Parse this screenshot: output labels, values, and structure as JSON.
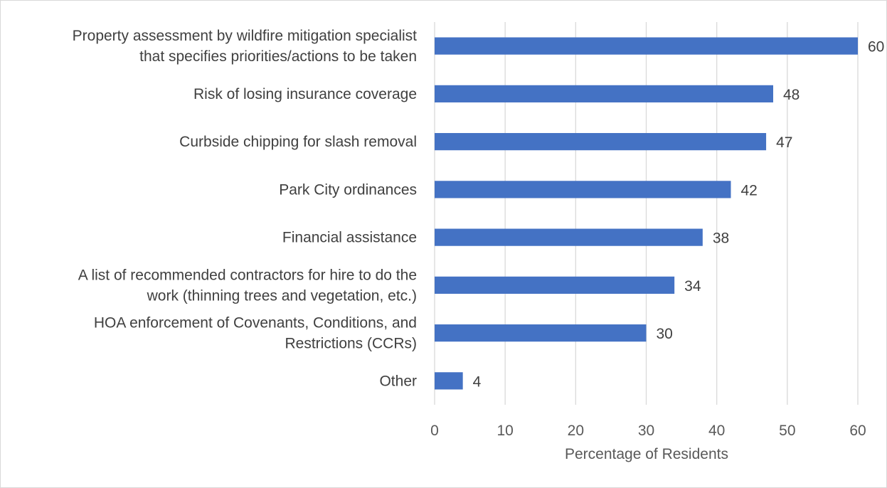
{
  "chart_data": {
    "type": "bar",
    "orientation": "horizontal",
    "categories": [
      [
        "Property assessment by wildfire mitigation specialist",
        "that specifies priorities/actions to be taken"
      ],
      [
        "Risk of losing insurance coverage"
      ],
      [
        "Curbside chipping for slash removal"
      ],
      [
        "Park City ordinances"
      ],
      [
        "Financial assistance"
      ],
      [
        "A list of recommended contractors for hire to do the",
        "work (thinning trees and vegetation, etc.)"
      ],
      [
        "HOA enforcement of Covenants, Conditions, and",
        "Restrictions (CCRs)"
      ],
      [
        "Other"
      ]
    ],
    "values": [
      60,
      48,
      47,
      42,
      38,
      34,
      30,
      4
    ],
    "xlabel": "Percentage of Residents",
    "ylabel": "",
    "xlim": [
      0,
      60
    ],
    "xticks": [
      0,
      10,
      20,
      30,
      40,
      50,
      60
    ],
    "grid": "vertical",
    "legend": "none",
    "bar_color": "#4472c4",
    "gridline_color": "#d9d9d9"
  }
}
